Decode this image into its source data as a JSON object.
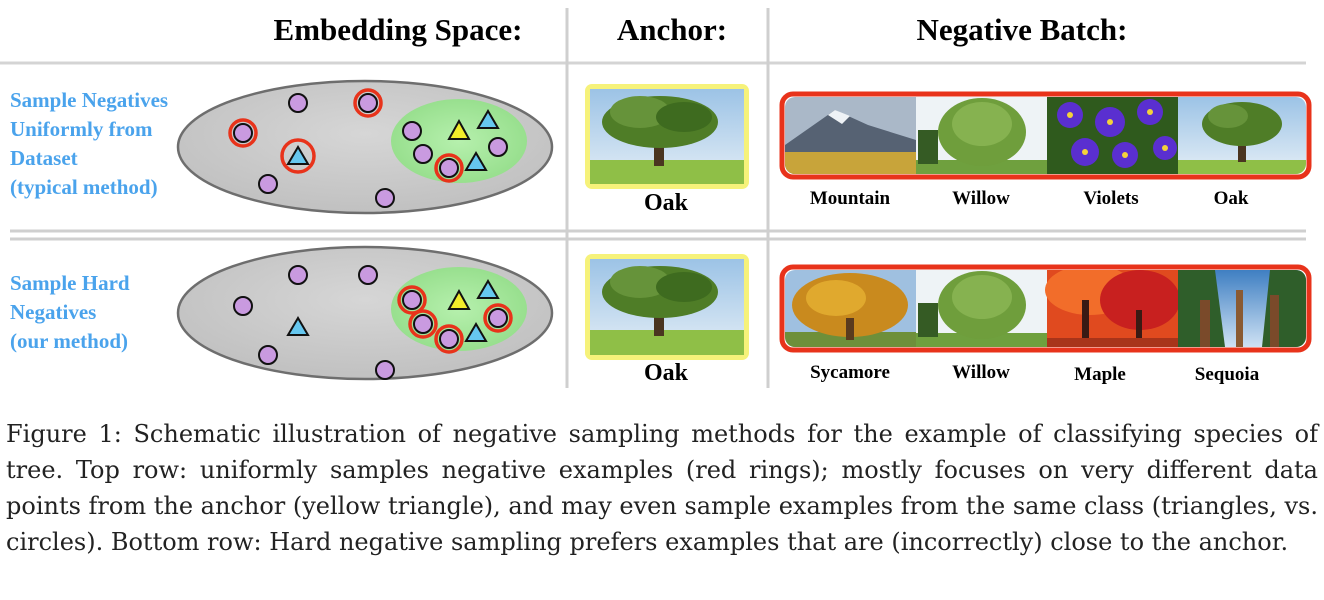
{
  "headers": {
    "embedding": "Embedding Space:",
    "anchor": "Anchor:",
    "negatives": "Negative Batch:"
  },
  "rows": [
    {
      "label": [
        "Sample Negatives",
        "Uniformly from",
        "Dataset",
        "(typical method)"
      ],
      "anchor_label": "Oak",
      "negatives": [
        "Mountain",
        "Willow",
        "Violets",
        "Oak"
      ]
    },
    {
      "label": [
        "Sample Hard",
        "Negatives",
        "(our method)"
      ],
      "anchor_label": "Oak",
      "negatives": [
        "Sycamore",
        "Willow",
        "Maple",
        "Sequoia"
      ]
    }
  ],
  "caption": "Figure 1: Schematic illustration of negative sampling methods for the example of classifying species of tree. Top row: uniformly samples negative examples (red rings); mostly focuses on very different data points from the anchor (yellow triangle), and may even sample examples from the same class (triangles, vs. circles). Bottom row: Hard negative sampling prefers examples that are (incorrectly) close to the anchor.",
  "colors": {
    "label_blue": "#4aa3ec",
    "ellipse_fill": "#cccccc",
    "cluster_green": "#a8e6a0",
    "point_purple": "#c99ae0",
    "triangle_blue": "#66c7ef",
    "triangle_yellow": "#f2ec2a",
    "ring_red": "#e8331b",
    "anchor_frame": "#f6f27a",
    "batch_frame": "#e8331b"
  },
  "icons": [
    "mountain-photo",
    "willow-photo",
    "violets-photo",
    "oak-photo",
    "sycamore-photo",
    "maple-photo",
    "sequoia-photo"
  ]
}
